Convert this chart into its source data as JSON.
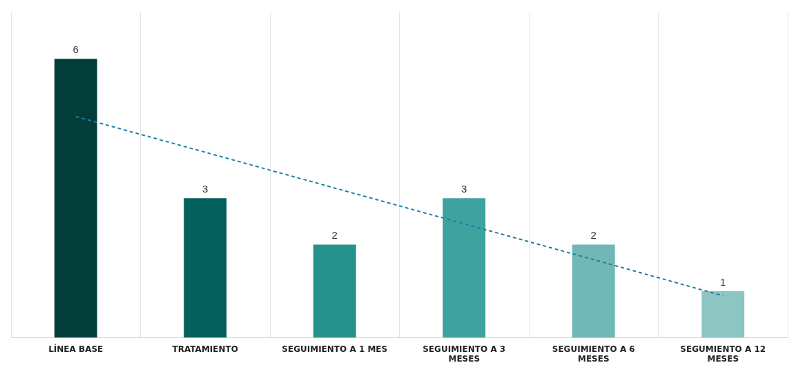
{
  "chart_data": {
    "type": "bar",
    "categories": [
      "LÍNEA BASE",
      "TRATAMIENTO",
      "SEGUIMIENTO A 1 MES",
      "SEGUIMIENTO A 3 MESES",
      "SEGUIMIENTO A 6 MESES",
      "SEGUMIENTO A 12 MESES"
    ],
    "series": [
      {
        "colors": [
          "#023d3a",
          "#03605c",
          "#26928e",
          "#3fa2a0",
          "#6fb8b6",
          "#8dc5c3"
        ],
        "values": [
          6,
          3,
          2,
          3,
          2,
          1
        ],
        "value_labels": [
          "6",
          "3",
          "2",
          "3",
          "2",
          "1"
        ]
      },
      {
        "type": "line",
        "color": "#1f7fa8",
        "line_style": "dashed",
        "marker": "none",
        "values": [
          4.76,
          3.99,
          3.22,
          2.45,
          1.68,
          0.9
        ]
      }
    ],
    "grid": "x",
    "legend": false
  }
}
